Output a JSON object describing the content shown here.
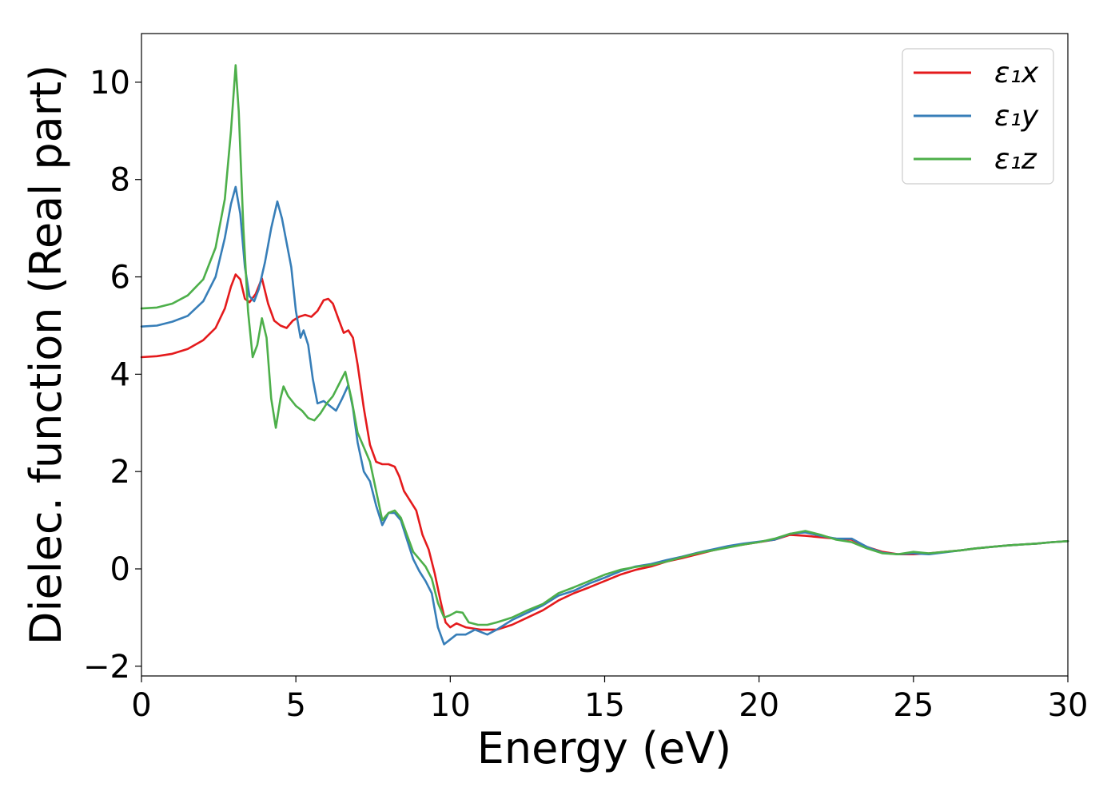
{
  "chart_data": {
    "type": "line",
    "xlabel": "Energy (eV)",
    "ylabel": "Dielec. function (Real part)",
    "xlim": [
      0,
      30
    ],
    "ylim": [
      -2.2,
      11.0
    ],
    "xticks": [
      0,
      5,
      10,
      15,
      20,
      25,
      30
    ],
    "yticks": [
      -2,
      0,
      2,
      4,
      6,
      8,
      10
    ],
    "xtick_labels": [
      "0",
      "5",
      "10",
      "15",
      "20",
      "25",
      "30"
    ],
    "ytick_labels": [
      "−2",
      "0",
      "2",
      "4",
      "6",
      "8",
      "10"
    ],
    "grid": false,
    "legend_position": "top-right",
    "series": [
      {
        "name": "ε₁x",
        "color": "#e41a1c",
        "points": [
          [
            0,
            4.35
          ],
          [
            0.5,
            4.37
          ],
          [
            1.0,
            4.42
          ],
          [
            1.5,
            4.52
          ],
          [
            2.0,
            4.7
          ],
          [
            2.4,
            4.95
          ],
          [
            2.7,
            5.35
          ],
          [
            2.9,
            5.8
          ],
          [
            3.05,
            6.05
          ],
          [
            3.2,
            5.95
          ],
          [
            3.35,
            5.55
          ],
          [
            3.5,
            5.48
          ],
          [
            3.7,
            5.65
          ],
          [
            3.9,
            5.97
          ],
          [
            4.1,
            5.45
          ],
          [
            4.3,
            5.1
          ],
          [
            4.5,
            5.0
          ],
          [
            4.7,
            4.95
          ],
          [
            4.9,
            5.1
          ],
          [
            5.1,
            5.18
          ],
          [
            5.3,
            5.22
          ],
          [
            5.5,
            5.18
          ],
          [
            5.7,
            5.3
          ],
          [
            5.9,
            5.52
          ],
          [
            6.05,
            5.55
          ],
          [
            6.2,
            5.45
          ],
          [
            6.4,
            5.1
          ],
          [
            6.55,
            4.85
          ],
          [
            6.7,
            4.9
          ],
          [
            6.85,
            4.75
          ],
          [
            7.0,
            4.2
          ],
          [
            7.2,
            3.3
          ],
          [
            7.4,
            2.55
          ],
          [
            7.6,
            2.2
          ],
          [
            7.8,
            2.15
          ],
          [
            8.0,
            2.15
          ],
          [
            8.2,
            2.1
          ],
          [
            8.35,
            1.9
          ],
          [
            8.5,
            1.6
          ],
          [
            8.7,
            1.4
          ],
          [
            8.9,
            1.2
          ],
          [
            9.1,
            0.7
          ],
          [
            9.3,
            0.4
          ],
          [
            9.5,
            -0.1
          ],
          [
            9.7,
            -0.7
          ],
          [
            9.85,
            -1.1
          ],
          [
            10.0,
            -1.2
          ],
          [
            10.2,
            -1.12
          ],
          [
            10.5,
            -1.2
          ],
          [
            11.0,
            -1.25
          ],
          [
            11.5,
            -1.25
          ],
          [
            12.0,
            -1.15
          ],
          [
            12.5,
            -1.0
          ],
          [
            13.0,
            -0.85
          ],
          [
            13.5,
            -0.65
          ],
          [
            14.0,
            -0.5
          ],
          [
            14.5,
            -0.38
          ],
          [
            15.0,
            -0.25
          ],
          [
            15.5,
            -0.12
          ],
          [
            16.0,
            -0.02
          ],
          [
            16.5,
            0.05
          ],
          [
            17.0,
            0.15
          ],
          [
            17.5,
            0.22
          ],
          [
            18.0,
            0.3
          ],
          [
            18.5,
            0.38
          ],
          [
            19.0,
            0.45
          ],
          [
            19.5,
            0.5
          ],
          [
            20.0,
            0.55
          ],
          [
            20.5,
            0.6
          ],
          [
            21.0,
            0.7
          ],
          [
            21.5,
            0.68
          ],
          [
            22.0,
            0.65
          ],
          [
            22.5,
            0.62
          ],
          [
            23.0,
            0.6
          ],
          [
            23.5,
            0.45
          ],
          [
            24.0,
            0.35
          ],
          [
            24.5,
            0.3
          ],
          [
            25.0,
            0.3
          ],
          [
            25.5,
            0.32
          ],
          [
            26.0,
            0.35
          ],
          [
            26.5,
            0.38
          ],
          [
            27.0,
            0.42
          ],
          [
            27.5,
            0.45
          ],
          [
            28.0,
            0.48
          ],
          [
            28.5,
            0.5
          ],
          [
            29.0,
            0.52
          ],
          [
            29.5,
            0.55
          ],
          [
            30.0,
            0.57
          ]
        ]
      },
      {
        "name": "ε₁y",
        "color": "#377eb8",
        "points": [
          [
            0,
            4.98
          ],
          [
            0.5,
            5.0
          ],
          [
            1.0,
            5.08
          ],
          [
            1.5,
            5.2
          ],
          [
            2.0,
            5.5
          ],
          [
            2.4,
            6.0
          ],
          [
            2.7,
            6.8
          ],
          [
            2.9,
            7.5
          ],
          [
            3.05,
            7.85
          ],
          [
            3.2,
            7.3
          ],
          [
            3.35,
            6.2
          ],
          [
            3.5,
            5.6
          ],
          [
            3.65,
            5.5
          ],
          [
            3.8,
            5.75
          ],
          [
            4.0,
            6.3
          ],
          [
            4.2,
            7.0
          ],
          [
            4.4,
            7.55
          ],
          [
            4.55,
            7.2
          ],
          [
            4.7,
            6.7
          ],
          [
            4.85,
            6.2
          ],
          [
            5.0,
            5.3
          ],
          [
            5.15,
            4.75
          ],
          [
            5.25,
            4.9
          ],
          [
            5.4,
            4.6
          ],
          [
            5.55,
            3.9
          ],
          [
            5.7,
            3.4
          ],
          [
            5.9,
            3.45
          ],
          [
            6.1,
            3.35
          ],
          [
            6.3,
            3.25
          ],
          [
            6.5,
            3.5
          ],
          [
            6.7,
            3.78
          ],
          [
            6.85,
            3.3
          ],
          [
            7.0,
            2.6
          ],
          [
            7.2,
            2.0
          ],
          [
            7.4,
            1.8
          ],
          [
            7.6,
            1.3
          ],
          [
            7.8,
            0.9
          ],
          [
            8.0,
            1.15
          ],
          [
            8.2,
            1.15
          ],
          [
            8.4,
            1.0
          ],
          [
            8.6,
            0.6
          ],
          [
            8.8,
            0.2
          ],
          [
            9.0,
            -0.05
          ],
          [
            9.2,
            -0.25
          ],
          [
            9.4,
            -0.5
          ],
          [
            9.6,
            -1.2
          ],
          [
            9.8,
            -1.55
          ],
          [
            10.0,
            -1.45
          ],
          [
            10.2,
            -1.35
          ],
          [
            10.5,
            -1.35
          ],
          [
            10.8,
            -1.25
          ],
          [
            11.2,
            -1.35
          ],
          [
            11.5,
            -1.25
          ],
          [
            12.0,
            -1.05
          ],
          [
            12.5,
            -0.9
          ],
          [
            13.0,
            -0.75
          ],
          [
            13.5,
            -0.55
          ],
          [
            14.0,
            -0.45
          ],
          [
            14.5,
            -0.3
          ],
          [
            15.0,
            -0.18
          ],
          [
            15.5,
            -0.05
          ],
          [
            16.0,
            0.05
          ],
          [
            16.5,
            0.1
          ],
          [
            17.0,
            0.18
          ],
          [
            17.5,
            0.25
          ],
          [
            18.0,
            0.33
          ],
          [
            18.5,
            0.4
          ],
          [
            19.0,
            0.47
          ],
          [
            19.5,
            0.52
          ],
          [
            20.0,
            0.56
          ],
          [
            20.5,
            0.6
          ],
          [
            21.0,
            0.72
          ],
          [
            21.5,
            0.75
          ],
          [
            22.0,
            0.68
          ],
          [
            22.5,
            0.62
          ],
          [
            23.0,
            0.62
          ],
          [
            23.5,
            0.45
          ],
          [
            24.0,
            0.33
          ],
          [
            24.5,
            0.3
          ],
          [
            25.0,
            0.32
          ],
          [
            25.5,
            0.3
          ],
          [
            26.0,
            0.34
          ],
          [
            26.5,
            0.38
          ],
          [
            27.0,
            0.42
          ],
          [
            27.5,
            0.45
          ],
          [
            28.0,
            0.48
          ],
          [
            28.5,
            0.5
          ],
          [
            29.0,
            0.52
          ],
          [
            29.5,
            0.55
          ],
          [
            30.0,
            0.57
          ]
        ]
      },
      {
        "name": "ε₁z",
        "color": "#4daf4a",
        "points": [
          [
            0,
            5.35
          ],
          [
            0.5,
            5.37
          ],
          [
            1.0,
            5.45
          ],
          [
            1.5,
            5.62
          ],
          [
            2.0,
            5.95
          ],
          [
            2.4,
            6.6
          ],
          [
            2.7,
            7.6
          ],
          [
            2.9,
            9.0
          ],
          [
            3.05,
            10.35
          ],
          [
            3.15,
            9.4
          ],
          [
            3.3,
            7.0
          ],
          [
            3.45,
            5.3
          ],
          [
            3.6,
            4.35
          ],
          [
            3.75,
            4.6
          ],
          [
            3.9,
            5.15
          ],
          [
            4.05,
            4.75
          ],
          [
            4.2,
            3.5
          ],
          [
            4.35,
            2.9
          ],
          [
            4.5,
            3.5
          ],
          [
            4.6,
            3.75
          ],
          [
            4.75,
            3.55
          ],
          [
            5.0,
            3.35
          ],
          [
            5.2,
            3.25
          ],
          [
            5.4,
            3.1
          ],
          [
            5.6,
            3.05
          ],
          [
            5.8,
            3.2
          ],
          [
            6.0,
            3.4
          ],
          [
            6.2,
            3.55
          ],
          [
            6.4,
            3.8
          ],
          [
            6.6,
            4.05
          ],
          [
            6.8,
            3.5
          ],
          [
            7.0,
            2.8
          ],
          [
            7.2,
            2.5
          ],
          [
            7.4,
            2.2
          ],
          [
            7.6,
            1.6
          ],
          [
            7.8,
            1.0
          ],
          [
            8.0,
            1.15
          ],
          [
            8.2,
            1.2
          ],
          [
            8.4,
            1.05
          ],
          [
            8.6,
            0.7
          ],
          [
            8.8,
            0.35
          ],
          [
            9.0,
            0.2
          ],
          [
            9.2,
            0.05
          ],
          [
            9.4,
            -0.2
          ],
          [
            9.6,
            -0.7
          ],
          [
            9.8,
            -1.0
          ],
          [
            10.0,
            -0.95
          ],
          [
            10.2,
            -0.88
          ],
          [
            10.4,
            -0.9
          ],
          [
            10.6,
            -1.1
          ],
          [
            10.9,
            -1.15
          ],
          [
            11.2,
            -1.15
          ],
          [
            11.5,
            -1.1
          ],
          [
            12.0,
            -1.0
          ],
          [
            12.5,
            -0.85
          ],
          [
            13.0,
            -0.72
          ],
          [
            13.5,
            -0.5
          ],
          [
            14.0,
            -0.38
          ],
          [
            14.5,
            -0.25
          ],
          [
            15.0,
            -0.12
          ],
          [
            15.5,
            -0.02
          ],
          [
            16.0,
            0.04
          ],
          [
            16.5,
            0.08
          ],
          [
            17.0,
            0.15
          ],
          [
            17.5,
            0.24
          ],
          [
            18.0,
            0.32
          ],
          [
            18.5,
            0.38
          ],
          [
            19.0,
            0.44
          ],
          [
            19.5,
            0.5
          ],
          [
            20.0,
            0.55
          ],
          [
            20.5,
            0.62
          ],
          [
            21.0,
            0.72
          ],
          [
            21.5,
            0.78
          ],
          [
            22.0,
            0.7
          ],
          [
            22.5,
            0.6
          ],
          [
            23.0,
            0.55
          ],
          [
            23.5,
            0.42
          ],
          [
            24.0,
            0.32
          ],
          [
            24.5,
            0.3
          ],
          [
            25.0,
            0.35
          ],
          [
            25.5,
            0.32
          ],
          [
            26.0,
            0.35
          ],
          [
            26.5,
            0.38
          ],
          [
            27.0,
            0.42
          ],
          [
            27.5,
            0.45
          ],
          [
            28.0,
            0.48
          ],
          [
            28.5,
            0.5
          ],
          [
            29.0,
            0.52
          ],
          [
            29.5,
            0.55
          ],
          [
            30.0,
            0.57
          ]
        ]
      }
    ]
  }
}
